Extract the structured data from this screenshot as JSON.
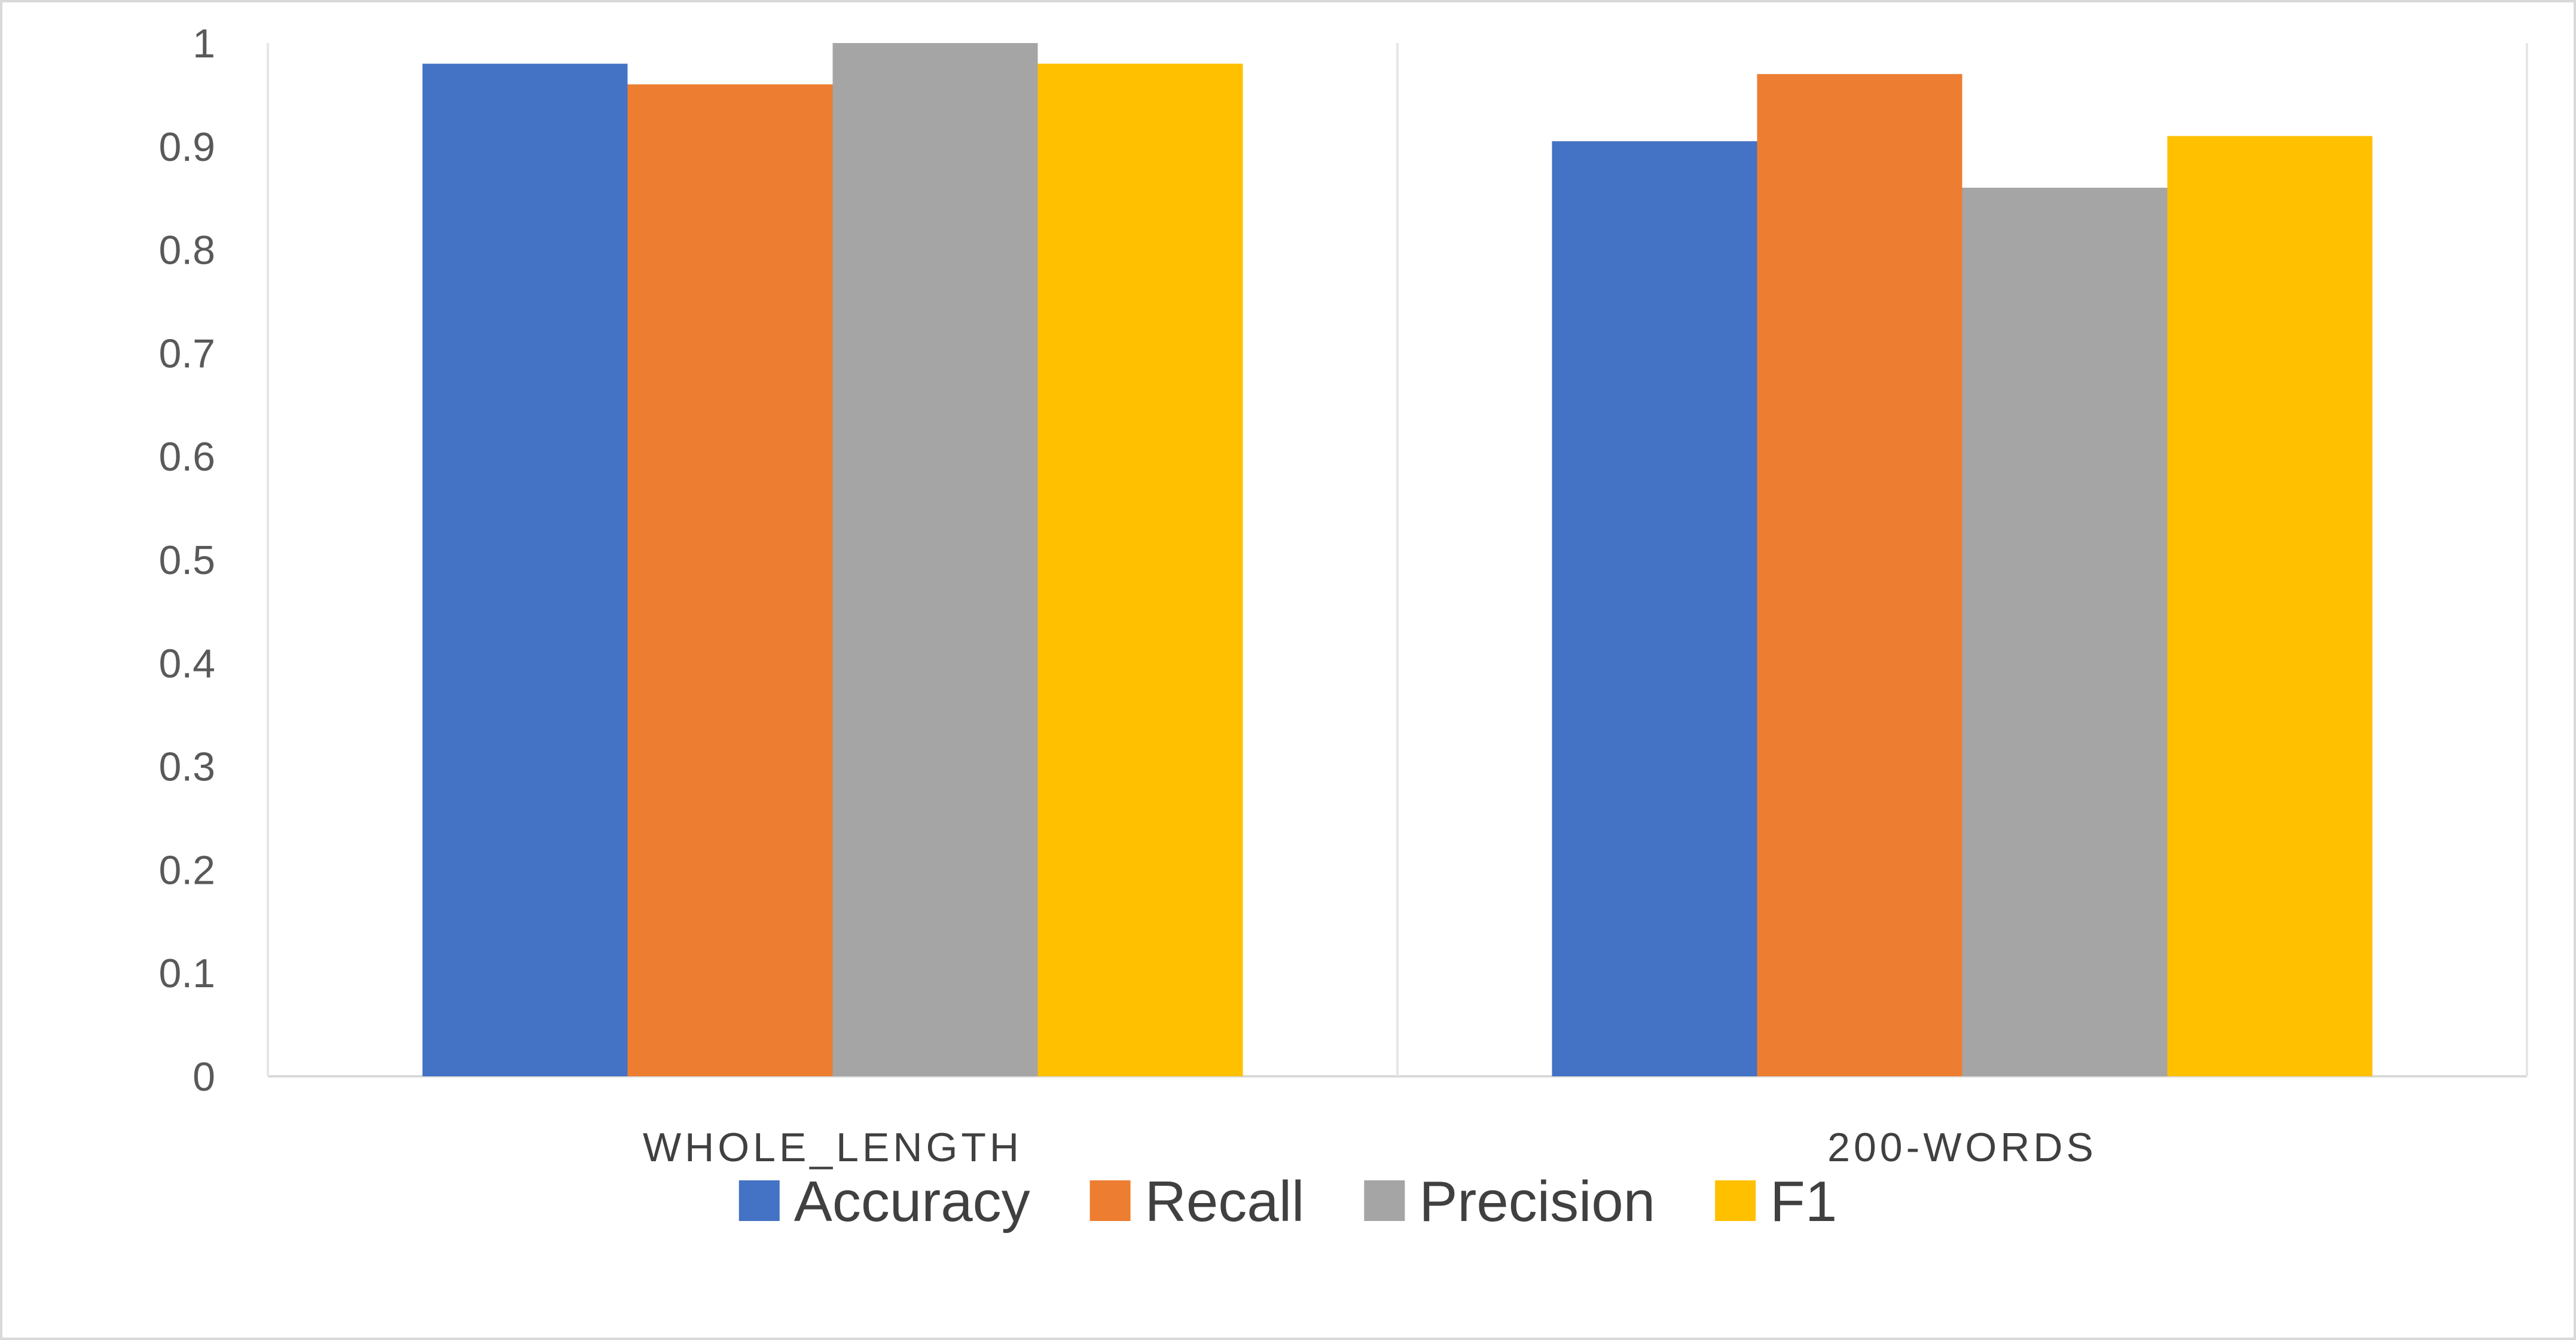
{
  "chart_data": {
    "type": "bar",
    "categories": [
      "WHOLE_LENGTH",
      "200-WORDS"
    ],
    "series": [
      {
        "name": "Accuracy",
        "color": "#4472C4",
        "values": [
          0.98,
          0.905
        ]
      },
      {
        "name": "Recall",
        "color": "#ED7D31",
        "values": [
          0.96,
          0.97
        ]
      },
      {
        "name": "Precision",
        "color": "#A5A5A5",
        "values": [
          1.0,
          0.86
        ]
      },
      {
        "name": "F1",
        "color": "#FFC000",
        "values": [
          0.98,
          0.91
        ]
      }
    ],
    "ylim": [
      0,
      1
    ],
    "yticks": [
      0,
      0.1,
      0.2,
      0.3,
      0.4,
      0.5,
      0.6,
      0.7,
      0.8,
      0.9,
      1
    ],
    "ytick_labels": [
      "0",
      "0.1",
      "0.2",
      "0.3",
      "0.4",
      "0.5",
      "0.6",
      "0.7",
      "0.8",
      "0.9",
      "1"
    ],
    "grid": false,
    "legend_position": "bottom"
  }
}
